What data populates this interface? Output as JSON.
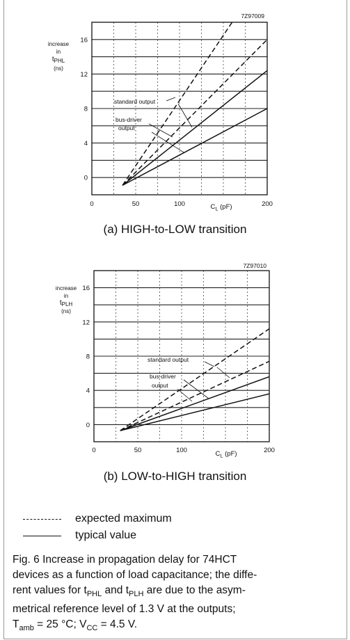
{
  "chart_data": [
    {
      "type": "line",
      "figure_code": "7Z97009",
      "caption": "(a) HIGH-to-LOW transition",
      "ylabel": [
        "increase",
        "in",
        "tPHL",
        "(ns)"
      ],
      "xlabel": "CL (pF)",
      "xlim": [
        0,
        200
      ],
      "ylim": [
        -2,
        18
      ],
      "x_ticks": [
        "0",
        "50",
        "100",
        "200"
      ],
      "x_tick_values": [
        0,
        50,
        100,
        200
      ],
      "y_ticks": [
        "0",
        "4",
        "8",
        "12",
        "16"
      ],
      "y_tick_values": [
        0,
        4,
        8,
        12,
        16
      ],
      "annotations": [
        "standard output",
        "bus-driver",
        "output"
      ],
      "grid": true,
      "series": [
        {
          "style": "dashed",
          "x": [
            35,
            160
          ],
          "y": [
            -0.9,
            18
          ]
        },
        {
          "style": "dashed",
          "x": [
            35,
            200
          ],
          "y": [
            -0.9,
            16
          ]
        },
        {
          "style": "solid",
          "x": [
            35,
            200
          ],
          "y": [
            -0.9,
            12.4
          ]
        },
        {
          "style": "solid",
          "x": [
            35,
            200
          ],
          "y": [
            -0.9,
            8
          ]
        }
      ]
    },
    {
      "type": "line",
      "figure_code": "7Z97010",
      "caption": "(b) LOW-to-HIGH transition",
      "ylabel": [
        "increase",
        "in",
        "tPLH",
        "(ns)"
      ],
      "xlabel": "CL (pF)",
      "xlim": [
        0,
        200
      ],
      "ylim": [
        -2,
        18
      ],
      "x_ticks": [
        "0",
        "50",
        "100",
        "200"
      ],
      "x_tick_values": [
        0,
        50,
        100,
        200
      ],
      "y_ticks": [
        "0",
        "4",
        "8",
        "12",
        "16"
      ],
      "y_tick_values": [
        0,
        4,
        8,
        12,
        16
      ],
      "annotations": [
        "standard output",
        "bus-driver",
        "output"
      ],
      "grid": true,
      "series": [
        {
          "style": "dashed",
          "x": [
            30,
            200
          ],
          "y": [
            -0.7,
            11.2
          ]
        },
        {
          "style": "dashed",
          "x": [
            30,
            200
          ],
          "y": [
            -0.7,
            7.4
          ]
        },
        {
          "style": "solid",
          "x": [
            30,
            200
          ],
          "y": [
            -0.7,
            5.6
          ]
        },
        {
          "style": "solid",
          "x": [
            30,
            200
          ],
          "y": [
            -0.7,
            3.6
          ]
        }
      ]
    }
  ],
  "legend": {
    "dashed": "expected maximum",
    "solid": "typical value"
  },
  "figure_note": {
    "line1": "Fig. 6 Increase in propagation delay for 74HCT",
    "line2": "devices as a function of load capacitance; the diffe-",
    "line3": "rent values for tPHL and tPLH are due to the asym-",
    "line4": "metrical reference level of 1.3 V at the outputs;",
    "line5": "Tamb = 25 °C; VCC = 4.5 V."
  }
}
